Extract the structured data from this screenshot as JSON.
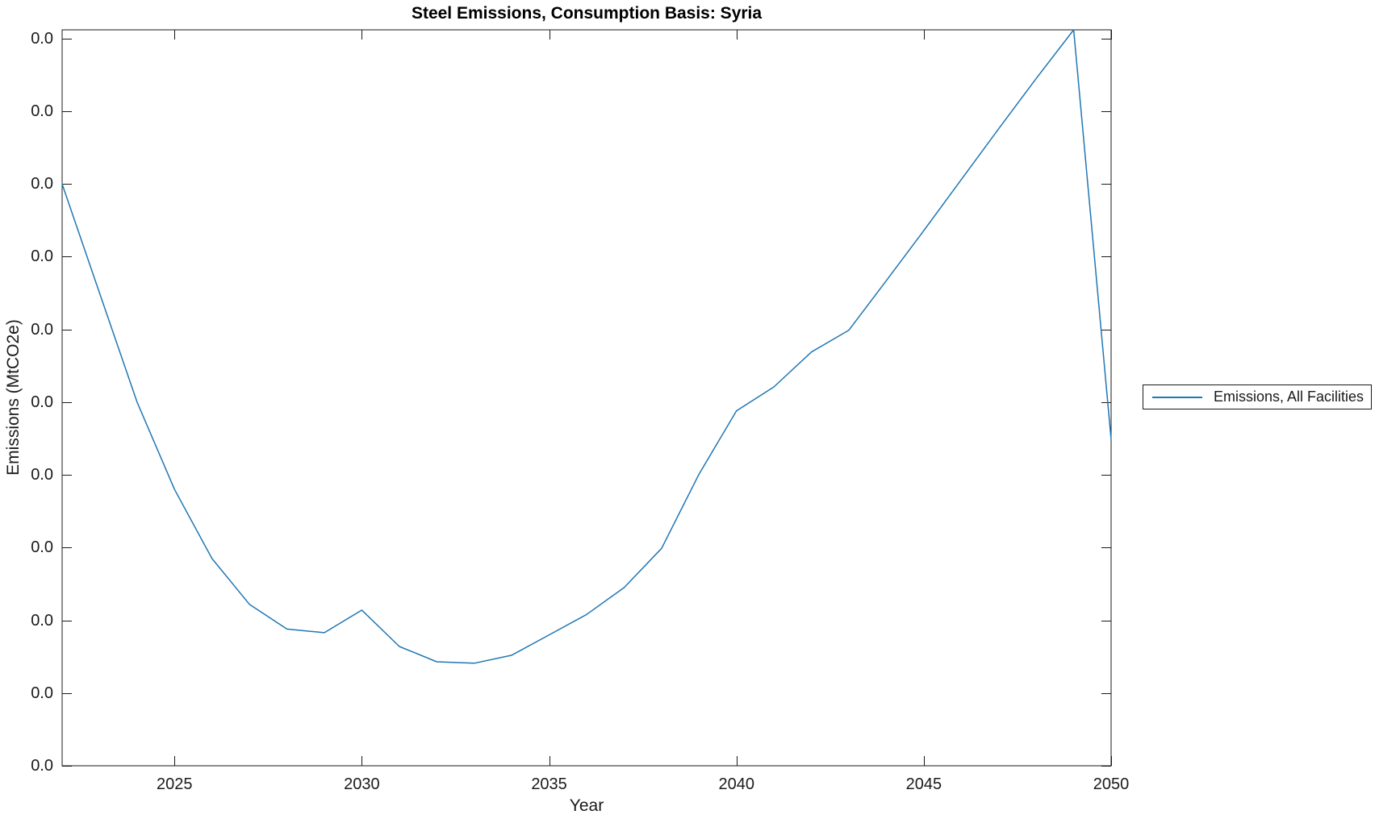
{
  "title": "Steel Emissions, Consumption Basis: Syria",
  "legend": {
    "position": "right-outside",
    "items": [
      {
        "label": "Emissions, All Facilities",
        "color": "#1f77b4"
      }
    ]
  },
  "colors": {
    "line": "#1f77b4",
    "axis": "#1a1a1a",
    "text": "#1a1a1a",
    "background": "#ffffff"
  },
  "chart_data": {
    "type": "line",
    "title": "Steel Emissions, Consumption Basis: Syria",
    "xlabel": "Year",
    "ylabel": "Emissions (MtCO2e)",
    "grid": false,
    "ticks_direction": "in",
    "box": true,
    "xlim": [
      2022,
      2050
    ],
    "ylim": [
      0,
      10.12
    ],
    "y_units_note": "all y tick labels render as 0.0; values below are in y-axis tick intervals measured from the bottom axis",
    "xtick_values": [
      2025,
      2030,
      2035,
      2040,
      2045,
      2050
    ],
    "xtick_labels": [
      "2025",
      "2030",
      "2035",
      "2040",
      "2045",
      "2050"
    ],
    "ytick_values": [
      0,
      1,
      2,
      3,
      4,
      5,
      6,
      7,
      8,
      9,
      10
    ],
    "ytick_labels": [
      "0.0",
      "0.0",
      "0.0",
      "0.0",
      "0.0",
      "0.0",
      "0.0",
      "0.0",
      "0.0",
      "0.0",
      "0.0"
    ],
    "x": [
      2022,
      2023,
      2024,
      2025,
      2026,
      2027,
      2028,
      2029,
      2030,
      2031,
      2032,
      2033,
      2034,
      2035,
      2036,
      2037,
      2038,
      2039,
      2040,
      2041,
      2042,
      2043,
      2044,
      2045,
      2046,
      2047,
      2048,
      2049,
      2050
    ],
    "series": [
      {
        "name": "Emissions, All Facilities",
        "color": "#1f77b4",
        "values": [
          8.0,
          6.5,
          5.0,
          3.8,
          2.85,
          2.22,
          1.88,
          1.83,
          2.14,
          1.64,
          1.43,
          1.41,
          1.52,
          1.8,
          2.08,
          2.45,
          2.99,
          4.01,
          4.88,
          5.21,
          5.69,
          5.99,
          6.67,
          7.36,
          8.06,
          8.76,
          9.45,
          10.12,
          4.49
        ]
      }
    ]
  }
}
